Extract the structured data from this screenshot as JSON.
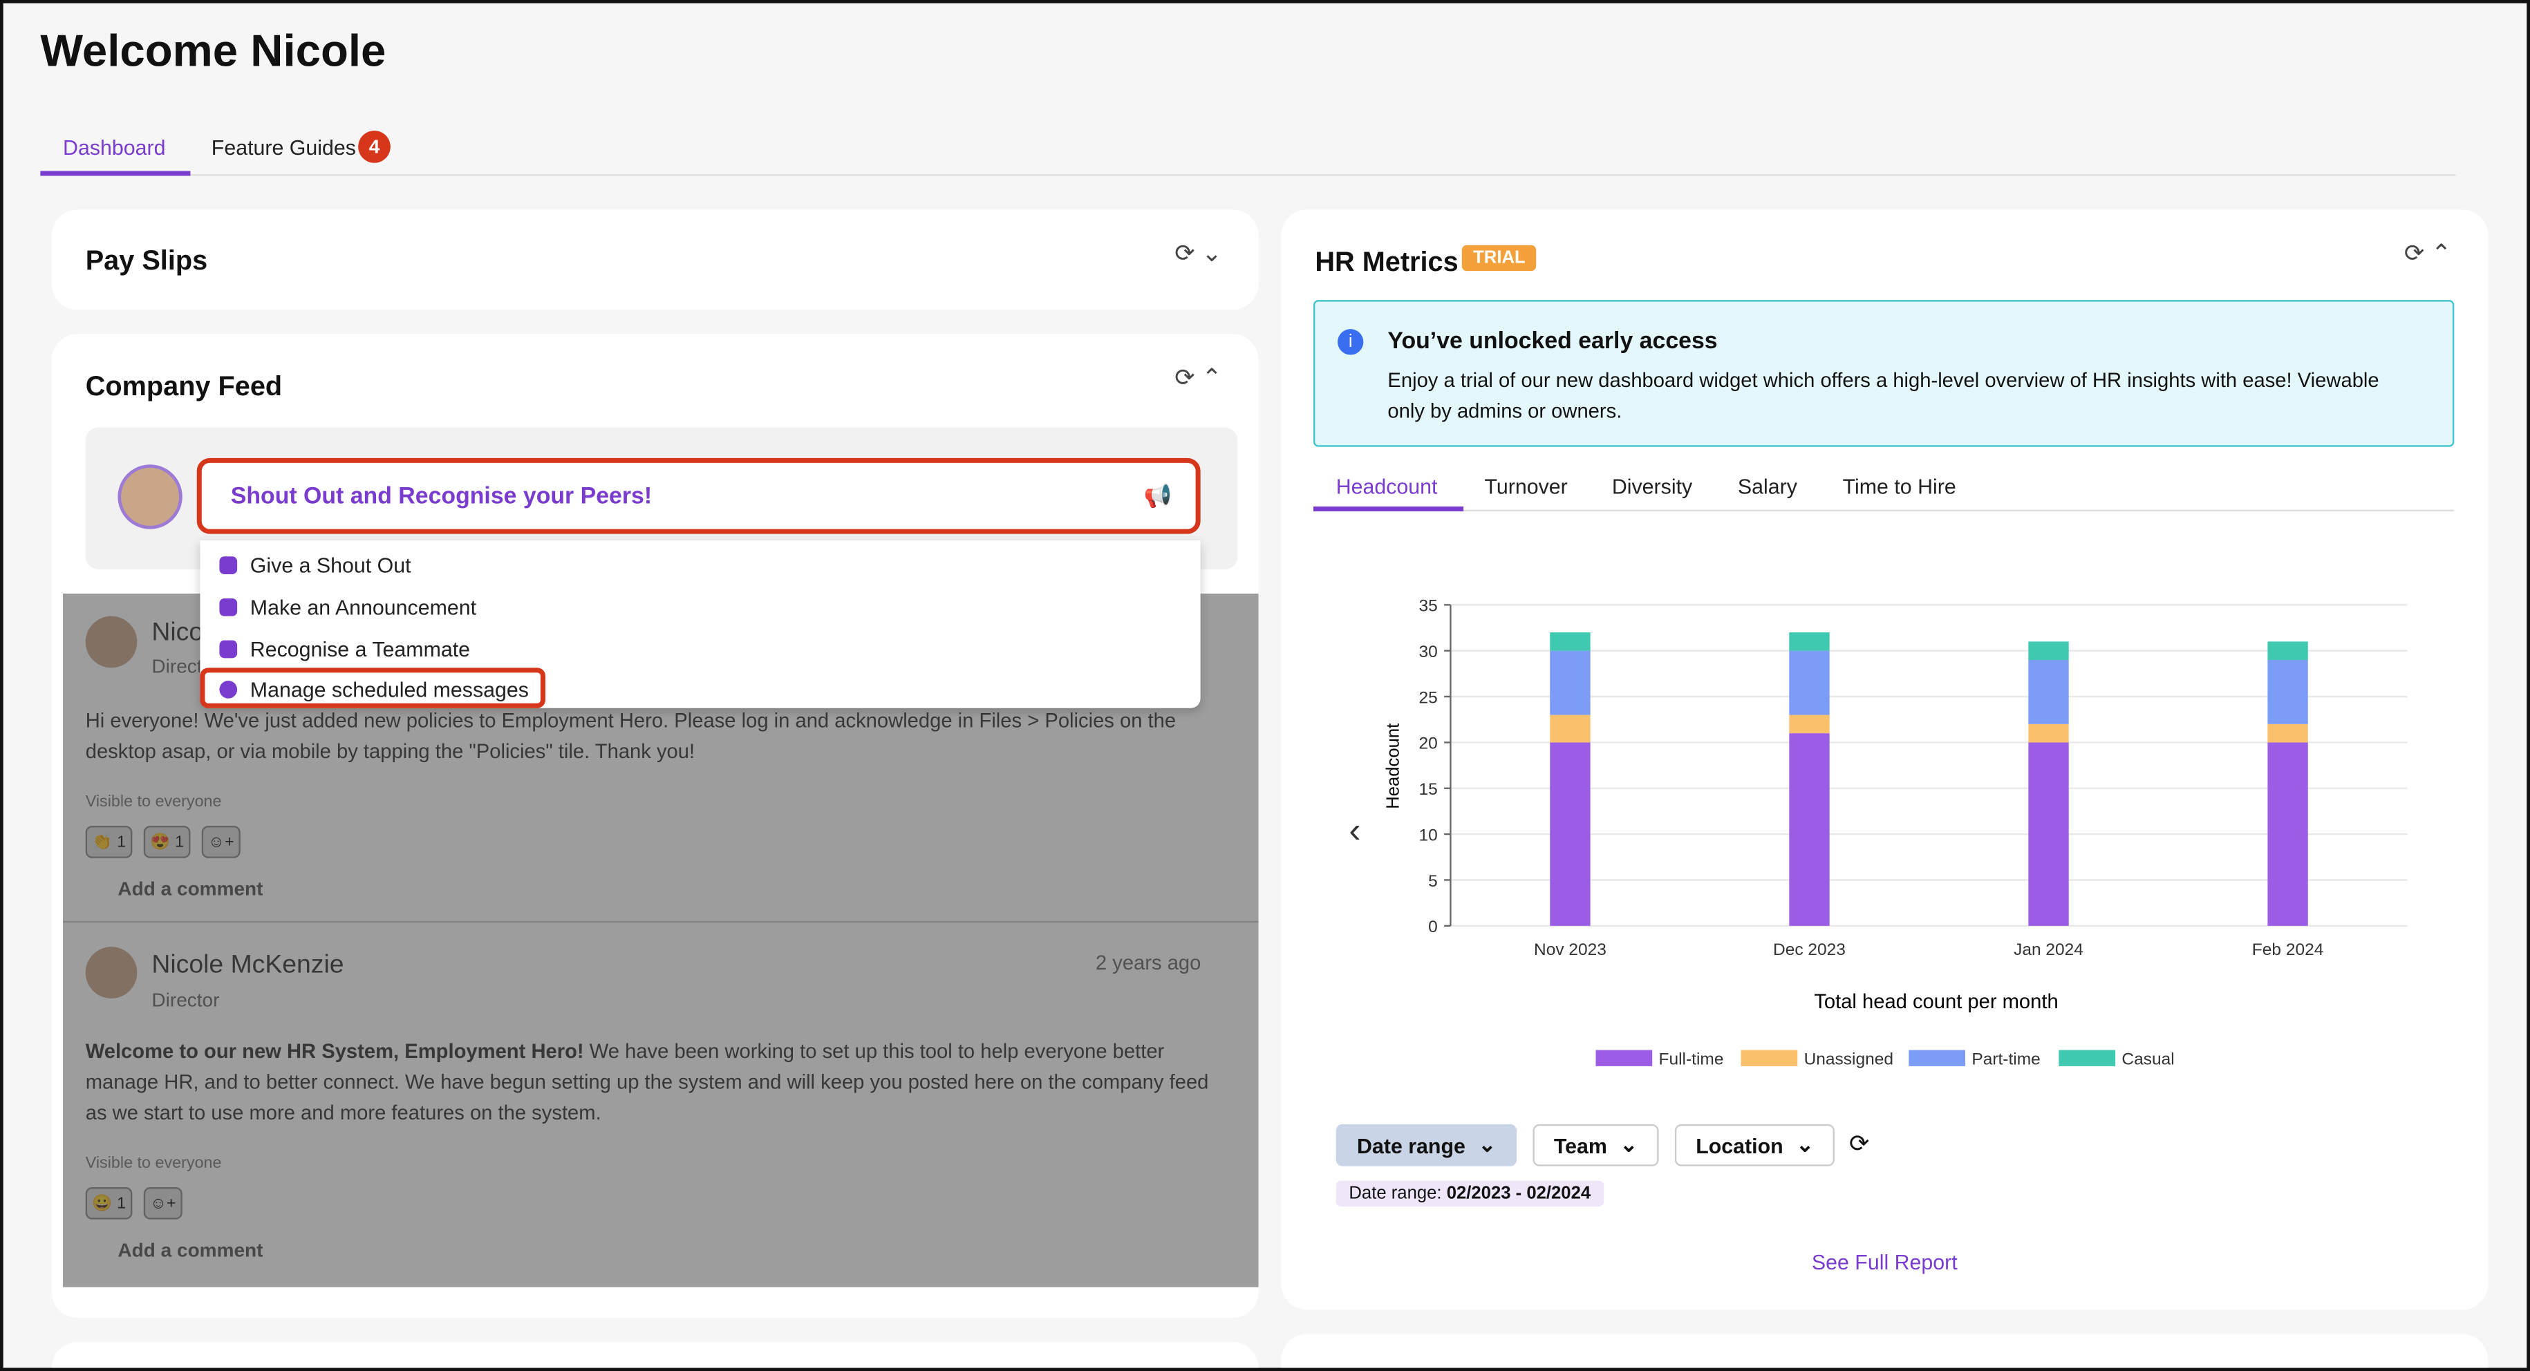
{
  "header": {
    "title": "Welcome Nicole"
  },
  "tabs": {
    "items": [
      "Dashboard",
      "Feature Guides"
    ],
    "badge": "4"
  },
  "pay_slips": {
    "title": "Pay Slips"
  },
  "company_feed": {
    "title": "Company Feed",
    "prompt": "Shout Out and Recognise your Peers!",
    "menu": [
      "Give a Shout Out",
      "Make an Announcement",
      "Recognise a Teammate",
      "Manage scheduled messages"
    ],
    "posts": [
      {
        "author": "Nicole McKenzie",
        "role": "Director",
        "body": "Hi everyone! We've just added new policies to Employment Hero. Please log in and acknowledge in Files > Policies on the desktop asap, or via mobile by tapping the \"Policies\" tile. Thank you!",
        "visibility": "Visible to everyone",
        "reactions": [
          "1",
          "1"
        ],
        "comment": "Add a comment"
      },
      {
        "author": "Nicole McKenzie",
        "role": "Director",
        "time": "2 years ago",
        "body_bold": "Welcome to our new HR System, Employment Hero!",
        "body": " We have been working to set up this tool to help everyone better manage HR, and to better connect. We have begun setting up the system and will keep you posted here on the company feed as we start to use more and more features on the system.",
        "visibility": "Visible to everyone",
        "reactions": [
          "1"
        ],
        "comment": "Add a comment"
      }
    ]
  },
  "hr_metrics": {
    "title": "HR Metrics",
    "badge": "TRIAL",
    "banner_title": "You’ve unlocked early access",
    "banner_text": "Enjoy a trial of our new dashboard widget which offers a high-level overview of HR insights with ease! Viewable only by admins or owners.",
    "tabs": [
      "Headcount",
      "Turnover",
      "Diversity",
      "Salary",
      "Time to Hire"
    ],
    "filters": [
      "Date range",
      "Team",
      "Location"
    ],
    "date_range_label": "Date range:",
    "date_range_value": "02/2023 - 02/2024",
    "link": "See Full Report"
  },
  "chart_data": {
    "type": "stacked_bar",
    "y_label": "Headcount",
    "x_label": "Total head count per month",
    "categories": [
      "Nov 2023",
      "Dec 2023",
      "Jan 2024",
      "Feb 2024"
    ],
    "series": [
      {
        "name": "Full-time",
        "color": "#9c5de6",
        "values": [
          20,
          21,
          20,
          20
        ]
      },
      {
        "name": "Unassigned",
        "color": "#fbc06c",
        "values": [
          3,
          2,
          2,
          2
        ]
      },
      {
        "name": "Part-time",
        "color": "#7b9cf7",
        "values": [
          7,
          7,
          7,
          7
        ]
      },
      {
        "name": "Casual",
        "color": "#3ec9b0",
        "values": [
          2,
          2,
          2,
          2
        ]
      }
    ],
    "ylim": [
      0,
      35
    ],
    "yticks": [
      0,
      5,
      10,
      15,
      20,
      25,
      30,
      35
    ],
    "grid": true
  }
}
